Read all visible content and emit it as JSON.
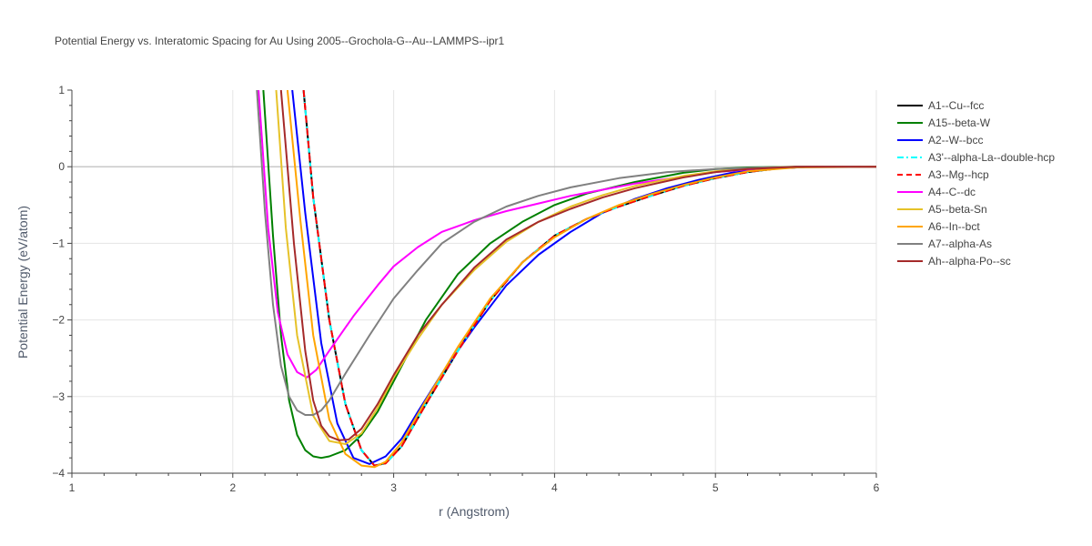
{
  "chart_data": {
    "type": "line",
    "title": "Potential Energy vs. Interatomic Spacing for Au Using 2005--Grochola-G--Au--LAMMPS--ipr1",
    "xlabel": "r (Angstrom)",
    "ylabel": "Potential Energy (eV/atom)",
    "xlim": [
      1,
      6
    ],
    "ylim": [
      -4,
      1
    ],
    "xticks": [
      1,
      2,
      3,
      4,
      5,
      6
    ],
    "yticks": [
      1,
      0,
      -1,
      -2,
      -3,
      -4
    ],
    "xtick_labels": [
      "1",
      "2",
      "3",
      "4",
      "5",
      "6"
    ],
    "ytick_labels": [
      "1",
      "0",
      "−1",
      "−2",
      "−3",
      "−4"
    ],
    "grid": true,
    "legend_position": "right",
    "series": [
      {
        "name": "A1--Cu--fcc",
        "color": "#000000",
        "dash": "solid",
        "x": [
          2.44,
          2.5,
          2.6,
          2.7,
          2.8,
          2.88,
          2.95,
          3.05,
          3.2,
          3.4,
          3.6,
          3.8,
          4.0,
          4.2,
          4.4,
          4.6,
          4.8,
          5.0,
          5.2,
          5.4,
          5.6,
          6.0
        ],
        "y": [
          1.0,
          -0.4,
          -2.0,
          -3.1,
          -3.7,
          -3.9,
          -3.87,
          -3.65,
          -3.1,
          -2.4,
          -1.75,
          -1.25,
          -0.9,
          -0.68,
          -0.52,
          -0.38,
          -0.25,
          -0.15,
          -0.07,
          -0.02,
          0.0,
          0.0
        ]
      },
      {
        "name": "A15--beta-W",
        "color": "#008000",
        "dash": "solid",
        "x": [
          2.19,
          2.25,
          2.3,
          2.35,
          2.4,
          2.45,
          2.5,
          2.55,
          2.6,
          2.7,
          2.8,
          2.9,
          3.0,
          3.1,
          3.2,
          3.4,
          3.6,
          3.8,
          4.0,
          4.2,
          4.5,
          4.8,
          5.0,
          5.2,
          5.5,
          6.0
        ],
        "y": [
          1.0,
          -0.9,
          -2.2,
          -3.05,
          -3.5,
          -3.7,
          -3.78,
          -3.8,
          -3.78,
          -3.7,
          -3.5,
          -3.2,
          -2.8,
          -2.4,
          -2.0,
          -1.4,
          -1.0,
          -0.72,
          -0.5,
          -0.35,
          -0.2,
          -0.08,
          -0.03,
          -0.01,
          0.0,
          0.0
        ]
      },
      {
        "name": "A2--W--bcc",
        "color": "#0000ff",
        "dash": "solid",
        "x": [
          2.37,
          2.45,
          2.55,
          2.65,
          2.75,
          2.85,
          2.95,
          3.05,
          3.15,
          3.3,
          3.5,
          3.7,
          3.9,
          4.1,
          4.3,
          4.5,
          4.7,
          4.9,
          5.1,
          5.3,
          5.5,
          6.0
        ],
        "y": [
          1.0,
          -0.6,
          -2.3,
          -3.35,
          -3.8,
          -3.88,
          -3.78,
          -3.55,
          -3.2,
          -2.7,
          -2.1,
          -1.55,
          -1.15,
          -0.85,
          -0.6,
          -0.42,
          -0.28,
          -0.17,
          -0.08,
          -0.03,
          0.0,
          0.0
        ]
      },
      {
        "name": "A3'--alpha-La--double-hcp",
        "color": "#00ffff",
        "dash": "dashdot",
        "x": [
          2.44,
          2.5,
          2.6,
          2.7,
          2.8,
          2.88,
          2.95,
          3.05,
          3.2,
          3.4,
          3.6,
          3.8,
          4.0,
          4.2,
          4.4,
          4.6,
          4.8,
          5.0,
          5.2,
          5.4,
          5.6,
          6.0
        ],
        "y": [
          1.0,
          -0.4,
          -2.0,
          -3.1,
          -3.7,
          -3.9,
          -3.87,
          -3.65,
          -3.1,
          -2.4,
          -1.75,
          -1.25,
          -0.9,
          -0.68,
          -0.52,
          -0.38,
          -0.25,
          -0.15,
          -0.07,
          -0.02,
          0.0,
          0.0
        ]
      },
      {
        "name": "A3--Mg--hcp",
        "color": "#ff0000",
        "dash": "dash",
        "x": [
          2.44,
          2.5,
          2.6,
          2.7,
          2.8,
          2.88,
          2.95,
          3.05,
          3.2,
          3.4,
          3.6,
          3.8,
          4.0,
          4.2,
          4.4,
          4.6,
          4.8,
          5.0,
          5.2,
          5.4,
          5.6,
          6.0
        ],
        "y": [
          1.0,
          -0.4,
          -2.0,
          -3.1,
          -3.7,
          -3.9,
          -3.87,
          -3.65,
          -3.1,
          -2.4,
          -1.75,
          -1.25,
          -0.9,
          -0.68,
          -0.52,
          -0.38,
          -0.25,
          -0.15,
          -0.07,
          -0.02,
          0.0,
          0.0
        ]
      },
      {
        "name": "A4--C--dc",
        "color": "#ff00ff",
        "dash": "solid",
        "x": [
          2.16,
          2.22,
          2.28,
          2.34,
          2.4,
          2.46,
          2.52,
          2.6,
          2.75,
          2.9,
          3.0,
          3.15,
          3.3,
          3.5,
          3.7,
          3.9,
          4.1,
          4.3,
          4.5,
          4.8,
          5.0,
          5.3,
          5.6,
          6.0
        ],
        "y": [
          1.0,
          -0.8,
          -1.9,
          -2.45,
          -2.68,
          -2.75,
          -2.65,
          -2.4,
          -1.95,
          -1.55,
          -1.3,
          -1.05,
          -0.85,
          -0.7,
          -0.58,
          -0.48,
          -0.38,
          -0.3,
          -0.22,
          -0.13,
          -0.07,
          -0.02,
          0.0,
          0.0
        ]
      },
      {
        "name": "A5--beta-Sn",
        "color": "#e6c229",
        "dash": "solid",
        "x": [
          2.27,
          2.33,
          2.4,
          2.5,
          2.6,
          2.7,
          2.8,
          2.9,
          3.0,
          3.15,
          3.3,
          3.5,
          3.7,
          3.9,
          4.1,
          4.3,
          4.5,
          4.8,
          5.0,
          5.2,
          5.5,
          6.0
        ],
        "y": [
          1.0,
          -0.8,
          -2.2,
          -3.25,
          -3.58,
          -3.62,
          -3.48,
          -3.15,
          -2.75,
          -2.25,
          -1.8,
          -1.35,
          -0.98,
          -0.72,
          -0.52,
          -0.37,
          -0.25,
          -0.12,
          -0.06,
          -0.02,
          0.0,
          0.0
        ]
      },
      {
        "name": "A6--In--bct",
        "color": "#ffa500",
        "dash": "solid",
        "x": [
          2.34,
          2.42,
          2.5,
          2.6,
          2.7,
          2.8,
          2.88,
          2.95,
          3.05,
          3.2,
          3.4,
          3.6,
          3.8,
          4.0,
          4.2,
          4.4,
          4.6,
          4.8,
          5.0,
          5.2,
          5.5,
          6.0
        ],
        "y": [
          1.0,
          -0.7,
          -2.2,
          -3.3,
          -3.75,
          -3.9,
          -3.92,
          -3.85,
          -3.6,
          -3.05,
          -2.35,
          -1.72,
          -1.25,
          -0.92,
          -0.68,
          -0.5,
          -0.36,
          -0.24,
          -0.14,
          -0.06,
          -0.01,
          0.0
        ]
      },
      {
        "name": "A7--alpha-As",
        "color": "#808080",
        "dash": "solid",
        "x": [
          2.15,
          2.2,
          2.25,
          2.3,
          2.35,
          2.4,
          2.45,
          2.5,
          2.55,
          2.6,
          2.7,
          2.85,
          3.0,
          3.15,
          3.3,
          3.5,
          3.7,
          3.9,
          4.1,
          4.4,
          4.7,
          5.0,
          5.3,
          5.6,
          6.0
        ],
        "y": [
          1.0,
          -0.6,
          -1.8,
          -2.6,
          -3.0,
          -3.18,
          -3.24,
          -3.24,
          -3.18,
          -3.05,
          -2.7,
          -2.2,
          -1.72,
          -1.35,
          -1.0,
          -0.72,
          -0.52,
          -0.38,
          -0.27,
          -0.15,
          -0.07,
          -0.03,
          -0.01,
          0.0,
          0.0
        ]
      },
      {
        "name": "Ah--alpha-Po--sc",
        "color": "#a52a2a",
        "dash": "solid",
        "x": [
          2.3,
          2.38,
          2.45,
          2.5,
          2.55,
          2.6,
          2.66,
          2.72,
          2.8,
          2.9,
          3.0,
          3.15,
          3.3,
          3.5,
          3.7,
          3.9,
          4.1,
          4.3,
          4.5,
          4.8,
          5.0,
          5.2,
          5.5,
          6.0
        ],
        "y": [
          1.0,
          -1.0,
          -2.4,
          -3.05,
          -3.38,
          -3.52,
          -3.57,
          -3.56,
          -3.42,
          -3.1,
          -2.72,
          -2.2,
          -1.8,
          -1.32,
          -0.95,
          -0.72,
          -0.55,
          -0.4,
          -0.28,
          -0.14,
          -0.07,
          -0.03,
          0.0,
          0.0
        ]
      }
    ]
  }
}
